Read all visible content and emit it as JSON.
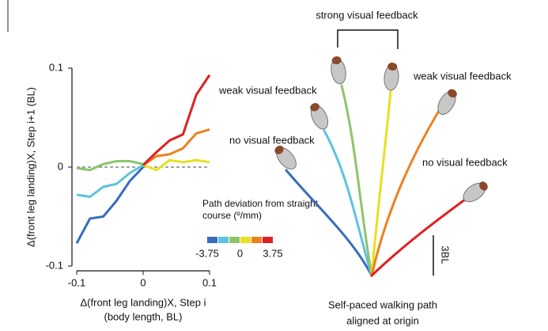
{
  "chart_data": {
    "type": "line",
    "y_label": "Δ(front leg landing)X, Step i+1 (BL)",
    "x_label": [
      "Δ(front leg landing)X, Step i",
      "(body length, BL)"
    ],
    "x": [
      -0.1,
      -0.08,
      -0.06,
      -0.04,
      -0.02,
      0,
      0.02,
      0.04,
      0.06,
      0.08,
      0.1
    ],
    "xlim": [
      -0.1,
      0.1
    ],
    "xticks": [
      -0.1,
      0,
      0.1
    ],
    "ylim": [
      -0.1,
      0.1
    ],
    "yticks": [
      0.1,
      0,
      -0.1
    ],
    "hline": 0,
    "series": [
      {
        "color": "#3a6cc0",
        "values": [
          -0.077,
          -0.052,
          -0.05,
          -0.034,
          -0.014,
          0,
          null,
          null,
          null,
          null,
          null
        ]
      },
      {
        "color": "#5bc4dc",
        "values": [
          -0.028,
          -0.03,
          -0.02,
          -0.017,
          -0.006,
          0.002,
          null,
          null,
          null,
          null,
          null
        ]
      },
      {
        "color": "#8cc56a",
        "values": [
          -0.001,
          -0.003,
          0.003,
          0.006,
          0.006,
          0.003,
          null,
          null,
          null,
          null,
          null
        ]
      },
      {
        "color": "#e8e020",
        "values": [
          null,
          null,
          null,
          null,
          null,
          0.002,
          -0.003,
          0.007,
          0.005,
          0.007,
          0.005
        ]
      },
      {
        "color": "#ee8020",
        "values": [
          null,
          null,
          null,
          null,
          null,
          0.002,
          0.011,
          0.013,
          0.019,
          0.034,
          0.038
        ]
      },
      {
        "color": "#e02020",
        "values": [
          null,
          null,
          null,
          null,
          null,
          0.002,
          0.015,
          0.027,
          0.033,
          0.073,
          0.093
        ]
      }
    ],
    "colorbar": {
      "title": "Path deviation from straight course (º/mm)",
      "colors": [
        "#3a6cc0",
        "#5bc4dc",
        "#8cc56a",
        "#e8e020",
        "#ee8020",
        "#e02020"
      ],
      "ticks": [
        -3.75,
        0,
        3.75
      ]
    }
  },
  "diagram": {
    "labels": {
      "strong": "strong visual feedback",
      "weak_left": "weak visual feedback",
      "weak_right": "weak visual feedback",
      "no_left": "no visual feedback",
      "no_right": "no visual feedback"
    },
    "scale_bar": "3BL",
    "caption": [
      "Self-paced walking path",
      "aligned at origin"
    ]
  }
}
